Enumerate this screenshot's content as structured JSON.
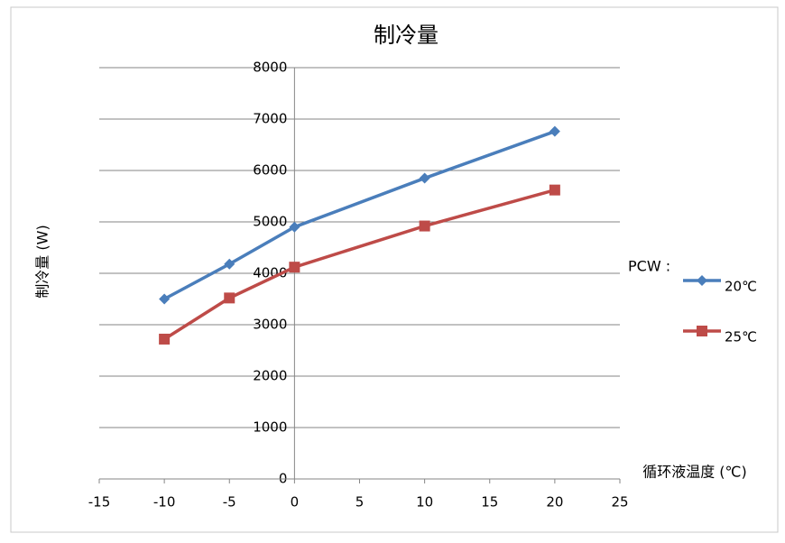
{
  "chart_data": {
    "type": "line",
    "title": "制冷量",
    "x_label": "循环液温度 (℃)",
    "y_label": "制冷量 (W)",
    "legend_title": "PCW :",
    "x": [
      -10,
      -5,
      0,
      10,
      20
    ],
    "series": [
      {
        "name": "20℃",
        "color": "#4a7ebb",
        "marker": "diamond",
        "values": [
          3500,
          4180,
          4900,
          5850,
          6760
        ]
      },
      {
        "name": "25℃",
        "color": "#be4b48",
        "marker": "square",
        "values": [
          2720,
          3520,
          4120,
          4920,
          5620
        ]
      }
    ],
    "xlim": [
      -15,
      25
    ],
    "xticks": [
      -15,
      -10,
      -5,
      0,
      5,
      10,
      15,
      20,
      25
    ],
    "ylim": [
      0,
      8000
    ],
    "yticks": [
      0,
      1000,
      2000,
      3000,
      4000,
      5000,
      6000,
      7000,
      8000
    ],
    "grid": true,
    "legend": "right"
  }
}
